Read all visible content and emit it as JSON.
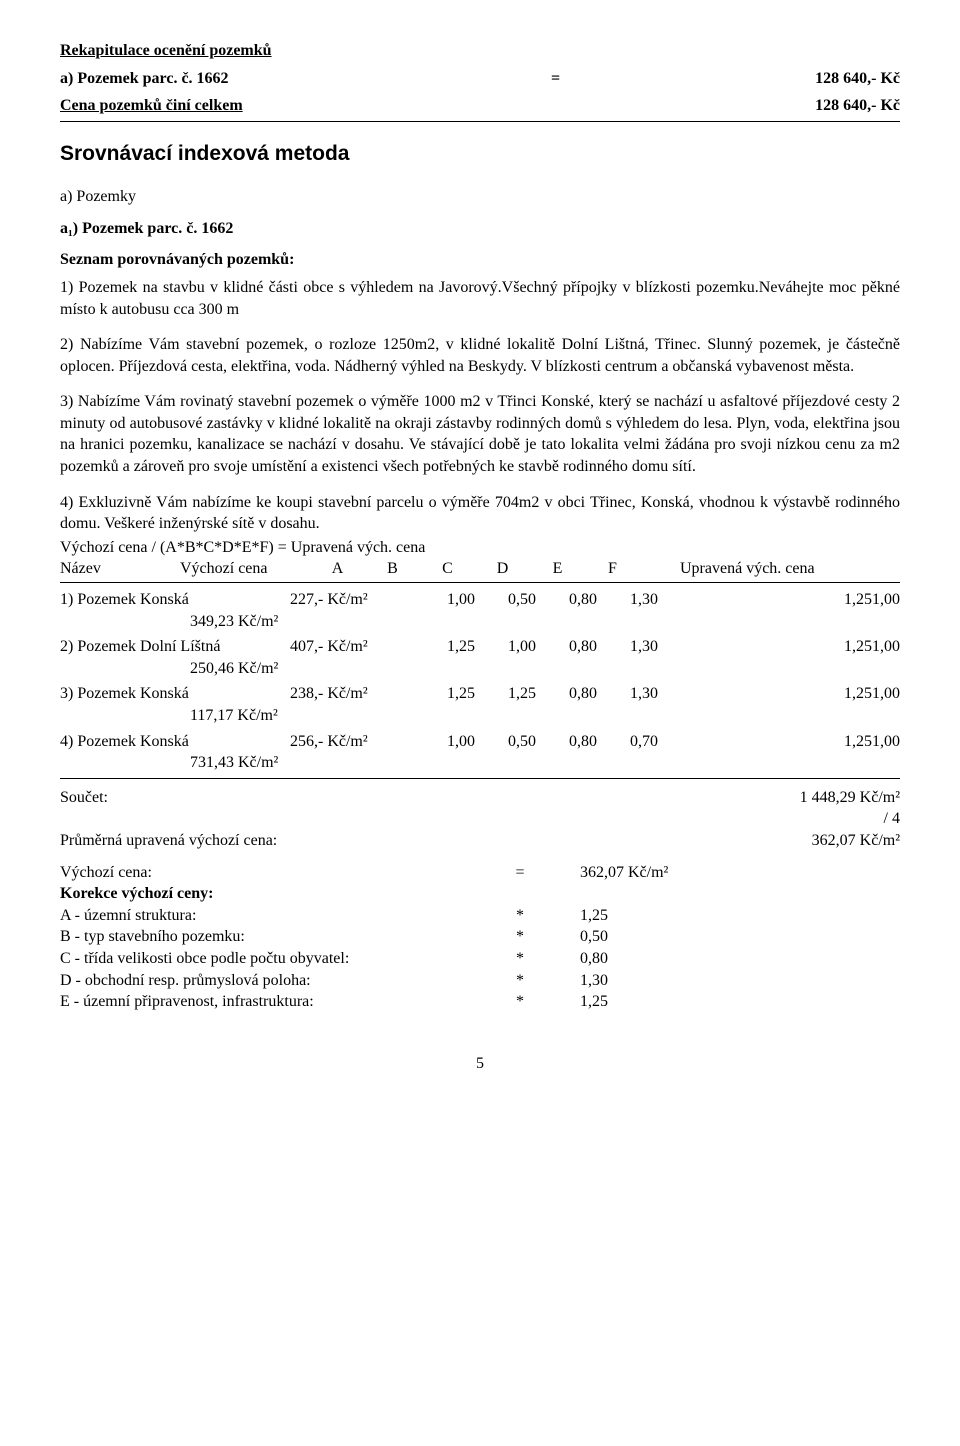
{
  "header": {
    "recap_title": "Rekapitulace ocenění pozemků",
    "item_a": "a) Pozemek parc. č. 1662",
    "equals": "=",
    "item_a_value": "128 640,- Kč",
    "total_label": "Cena pozemků činí celkem",
    "total_value": "128 640,- Kč"
  },
  "method_title": "Srovnávací indexová metoda",
  "section_a": "a) Pozemky",
  "section_a1": "a₁) Pozemek parc. č. 1662",
  "list_heading": "Seznam porovnávaných pozemků:",
  "p1": "1) Pozemek na stavbu v klidné části obce s výhledem na Javorový.Všechný přípojky v blízkosti pozemku.Neváhejte moc pěkné místo k autobusu cca 300 m",
  "p2": "2) Nabízíme Vám stavební pozemek, o rozloze 1250m2, v klidné lokalitě Dolní Lištná, Třinec. Slunný pozemek, je částečně oplocen. Příjezdová cesta, elektřina, voda. Nádherný výhled na Beskydy. V blízkosti centrum a občanská vybavenost města.",
  "p3": "3) Nabízíme Vám rovinatý stavební pozemek o výměře 1000 m2 v Třinci Konské, který se nachází u asfaltové příjezdové cesty 2 minuty od autobusové zastávky v klidné lokalitě na okraji zástavby rodinných domů s výhledem do lesa. Plyn, voda, elektřina jsou na hranici pozemku, kanalizace se nachází v dosahu. Ve stávající době je tato lokalita velmi žádána pro svoji nízkou cenu za m2 pozemků a zároveň pro svoje umístění a existenci všech potřebných ke stavbě rodinného domu sítí.",
  "p4": "4) Exkluzivně Vám nabízíme ke koupi stavební parcelu o výměře 704m2 v obci Třinec, Konská, vhodnou k výstavbě rodinného domu. Veškeré inženýrské sítě v dosahu.",
  "formula": "Výchozí cena / (A*B*C*D*E*F) = Upravená vých. cena",
  "columns": {
    "name": "Název",
    "vc": "Výchozí cena",
    "A": "A",
    "B": "B",
    "C": "C",
    "D": "D",
    "E": "E",
    "F": "F",
    "u": "Upravená vých. cena"
  },
  "rows": [
    {
      "name": "1) Pozemek Konská",
      "vc": "227,- Kč/m²",
      "A": "1,00",
      "B": "0,50",
      "C": "0,80",
      "D": "1,30",
      "E": "",
      "F": "1,251,00",
      "adj": "349,23 Kč/m²"
    },
    {
      "name": "2) Pozemek Dolní Líštná",
      "vc": "407,- Kč/m²",
      "A": "1,25",
      "B": "1,00",
      "C": "0,80",
      "D": "1,30",
      "E": "",
      "F": "1,251,00",
      "adj": "250,46 Kč/m²"
    },
    {
      "name": "3) Pozemek Konská",
      "vc": "238,- Kč/m²",
      "A": "1,25",
      "B": "1,25",
      "C": "0,80",
      "D": "1,30",
      "E": "",
      "F": "1,251,00",
      "adj": "117,17 Kč/m²"
    },
    {
      "name": "4) Pozemek Konská",
      "vc": "256,- Kč/m²",
      "A": "1,00",
      "B": "0,50",
      "C": "0,80",
      "D": "0,70",
      "E": "",
      "F": "1,251,00",
      "adj": "731,43 Kč/m²"
    }
  ],
  "totals": {
    "sum_label": "Součet:",
    "sum_value": "1 448,29 Kč/m²",
    "div": "/ 4",
    "avg_label": "Průměrná upravená výchozí cena:",
    "avg_value": "362,07 Kč/m²"
  },
  "vychozi": {
    "label": "Výchozí cena:",
    "eq": "=",
    "value": "362,07 Kč/m²"
  },
  "korekce_label": "Korekce výchozí ceny:",
  "korekce": [
    {
      "label": "A - územní struktura:",
      "star": "*",
      "val": "1,25"
    },
    {
      "label": "B - typ stavebního pozemku:",
      "star": "*",
      "val": "0,50"
    },
    {
      "label": "C - třída velikosti obce podle počtu obyvatel:",
      "star": "*",
      "val": "0,80"
    },
    {
      "label": "D - obchodní resp. průmyslová poloha:",
      "star": "*",
      "val": "1,30"
    },
    {
      "label": "E - územní připravenost, infrastruktura:",
      "star": "*",
      "val": "1,25"
    }
  ],
  "page_number": "5"
}
